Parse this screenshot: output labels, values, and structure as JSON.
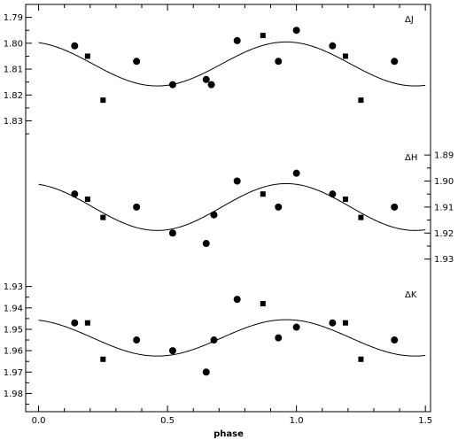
{
  "chart_data": {
    "type": "scatter",
    "xlabel": "phase",
    "xlim": [
      -0.05,
      1.52
    ],
    "xticks": [
      "0.0",
      "0.5",
      "1.0",
      "1.5"
    ],
    "xtick_values": [
      0,
      0.5,
      1.0,
      1.5
    ],
    "marker_types": [
      "circle",
      "square"
    ],
    "panels": [
      {
        "label": "ΔJ",
        "tick_side": "left",
        "ylim": [
          1.785,
          1.837
        ],
        "yticks": [
          "1.79",
          "1.80",
          "1.81",
          "1.82",
          "1.83"
        ],
        "ytick_values": [
          1.79,
          1.8,
          1.81,
          1.82,
          1.83
        ],
        "model_curve": {
          "mean": 1.808,
          "amplitude": 0.0085,
          "phase_of_min": 0.46
        },
        "circles": [
          [
            0.14,
            1.801
          ],
          [
            0.38,
            1.807
          ],
          [
            0.52,
            1.816
          ],
          [
            0.65,
            1.814
          ],
          [
            0.67,
            1.816
          ],
          [
            0.77,
            1.799
          ],
          [
            0.93,
            1.807
          ],
          [
            1.0,
            1.795
          ],
          [
            1.14,
            1.801
          ],
          [
            1.38,
            1.807
          ]
        ],
        "squares": [
          [
            0.19,
            1.805
          ],
          [
            0.25,
            1.822
          ],
          [
            0.87,
            1.797
          ],
          [
            1.19,
            1.805
          ],
          [
            1.25,
            1.822
          ]
        ]
      },
      {
        "label": "ΔH",
        "tick_side": "right",
        "ylim": [
          1.8835,
          1.9325
        ],
        "yticks": [
          "1.89",
          "1.90",
          "1.91",
          "1.92",
          "1.93"
        ],
        "ytick_values": [
          1.89,
          1.9,
          1.91,
          1.92,
          1.93
        ],
        "model_curve": {
          "mean": 1.91,
          "amplitude": 0.009,
          "phase_of_min": 0.46
        },
        "circles": [
          [
            0.14,
            1.905
          ],
          [
            0.38,
            1.91
          ],
          [
            0.52,
            1.92
          ],
          [
            0.65,
            1.924
          ],
          [
            0.68,
            1.913
          ],
          [
            0.77,
            1.9
          ],
          [
            0.93,
            1.91
          ],
          [
            1.0,
            1.897
          ],
          [
            1.14,
            1.905
          ],
          [
            1.38,
            1.91
          ]
        ],
        "squares": [
          [
            0.19,
            1.907
          ],
          [
            0.25,
            1.914
          ],
          [
            0.87,
            1.905
          ],
          [
            1.19,
            1.907
          ],
          [
            1.25,
            1.914
          ]
        ]
      },
      {
        "label": "ΔK",
        "tick_side": "left",
        "ylim": [
          1.9285,
          1.9885
        ],
        "yticks": [
          "1.93",
          "1.94",
          "1.95",
          "1.96",
          "1.97",
          "1.98"
        ],
        "ytick_values": [
          1.93,
          1.94,
          1.95,
          1.96,
          1.97,
          1.98
        ],
        "model_curve": {
          "mean": 1.954,
          "amplitude": 0.0085,
          "phase_of_min": 0.46
        },
        "circles": [
          [
            0.14,
            1.947
          ],
          [
            0.38,
            1.955
          ],
          [
            0.52,
            1.96
          ],
          [
            0.65,
            1.97
          ],
          [
            0.68,
            1.955
          ],
          [
            0.77,
            1.936
          ],
          [
            0.93,
            1.954
          ],
          [
            1.0,
            1.949
          ],
          [
            1.14,
            1.947
          ],
          [
            1.38,
            1.955
          ]
        ],
        "squares": [
          [
            0.19,
            1.947
          ],
          [
            0.25,
            1.964
          ],
          [
            0.87,
            1.938
          ],
          [
            1.19,
            1.947
          ],
          [
            1.25,
            1.964
          ]
        ]
      }
    ]
  }
}
